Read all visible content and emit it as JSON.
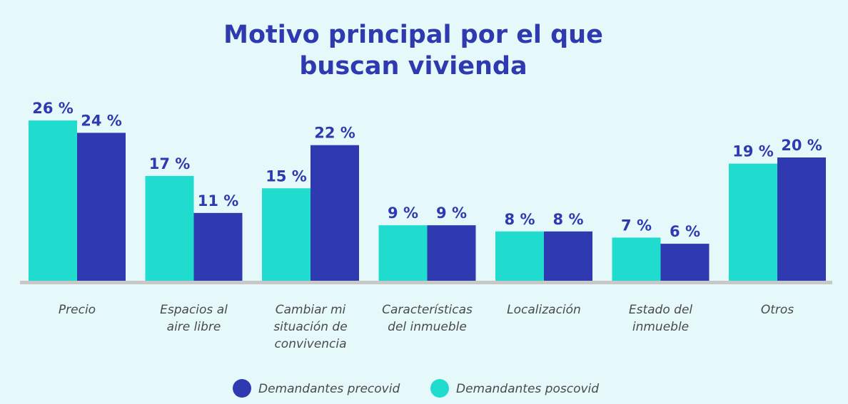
{
  "chart_data": {
    "type": "bar",
    "title": "Motivo principal por el que buscan vivienda",
    "title_lines": [
      "Motivo principal por el que",
      "buscan vivienda"
    ],
    "categories": [
      [
        "Precio"
      ],
      [
        "Espacios al",
        "aire libre"
      ],
      [
        "Cambiar mi",
        "situación de",
        "convivencia"
      ],
      [
        "Características",
        "del inmueble"
      ],
      [
        "Localización"
      ],
      [
        "Estado del",
        "inmueble"
      ],
      [
        "Otros"
      ]
    ],
    "series": [
      {
        "name": "Demandantes poscovid",
        "color": "#20dccf",
        "values": [
          26,
          17,
          15,
          9,
          8,
          7,
          19
        ]
      },
      {
        "name": "Demandantes precovid",
        "color": "#2f3ab0",
        "values": [
          24,
          11,
          22,
          9,
          8,
          6,
          20
        ]
      }
    ],
    "value_suffix": " %",
    "legend_order": [
      "Demandantes precovid",
      "Demandantes poscovid"
    ],
    "legend_placement": "bottom",
    "grid": false,
    "ylim": [
      0,
      26
    ]
  },
  "colors": {
    "background": "#e6f9fa",
    "axis": "#c8c8c8",
    "text": "#2f3ab0"
  }
}
